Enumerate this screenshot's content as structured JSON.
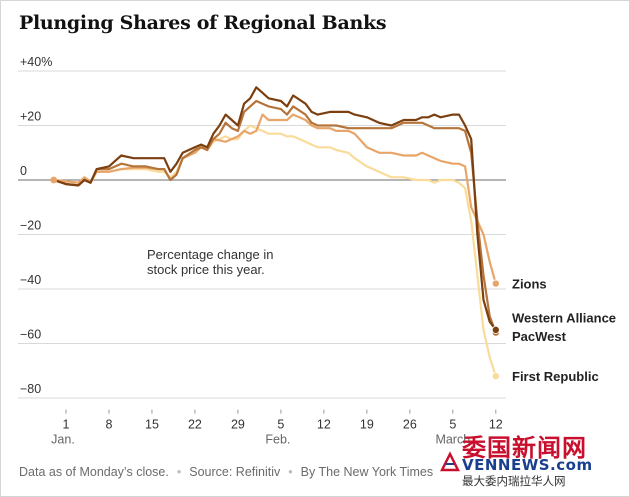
{
  "title": "Plunging Shares of Regional Banks",
  "footer": {
    "note": "Data as of Monday’s close.",
    "source": "Source: Refinitiv",
    "credit": "By The New York Times"
  },
  "watermark": {
    "chinese_title": "委国新闻网",
    "latin": "VENNEWS.com",
    "chinese_tagline": "最大委内瑞拉华人网"
  },
  "colors": {
    "zions": "#E8A569",
    "western_alliance": "#7B3F10",
    "pacwest": "#B5743A",
    "first_republic": "#F9DB9A",
    "grid": "#D9D9D9",
    "zero_line": "#8A8A8A",
    "text": "#333333"
  },
  "chart_data": {
    "type": "line",
    "title": "Plunging Shares of Regional Banks",
    "annotation": "Percentage change in stock price this year.",
    "xlabel": "",
    "ylabel": "",
    "ylim": [
      -85,
      40
    ],
    "yticks": [
      {
        "value": 40,
        "label": "+40%"
      },
      {
        "value": 20,
        "label": "+20"
      },
      {
        "value": 0,
        "label": "0"
      },
      {
        "value": -20,
        "label": "−20"
      },
      {
        "value": -40,
        "label": "−40"
      },
      {
        "value": -60,
        "label": "−60"
      },
      {
        "value": -80,
        "label": "−80"
      }
    ],
    "xticks": [
      {
        "day": 1,
        "label": "1",
        "month": "Jan."
      },
      {
        "day": 8,
        "label": "8",
        "month": ""
      },
      {
        "day": 15,
        "label": "15",
        "month": ""
      },
      {
        "day": 22,
        "label": "22",
        "month": ""
      },
      {
        "day": 29,
        "label": "29",
        "month": ""
      },
      {
        "day": 36,
        "label": "5",
        "month": "Feb."
      },
      {
        "day": 43,
        "label": "12",
        "month": ""
      },
      {
        "day": 50,
        "label": "19",
        "month": ""
      },
      {
        "day": 57,
        "label": "26",
        "month": ""
      },
      {
        "day": 64,
        "label": "5",
        "month": "March"
      },
      {
        "day": 71,
        "label": "12",
        "month": ""
      }
    ],
    "grid": "horizontal",
    "series": [
      {
        "name": "Zions",
        "key": "zions",
        "end_label": "Zions",
        "points": [
          [
            -1,
            0
          ],
          [
            1,
            -0.5
          ],
          [
            3,
            -1
          ],
          [
            4,
            1
          ],
          [
            5,
            -0.5
          ],
          [
            6,
            3
          ],
          [
            8,
            3
          ],
          [
            10,
            4
          ],
          [
            12,
            4.5
          ],
          [
            14,
            4.5
          ],
          [
            16,
            4
          ],
          [
            17,
            4
          ],
          [
            18,
            0
          ],
          [
            19,
            2
          ],
          [
            20,
            8
          ],
          [
            22,
            10
          ],
          [
            23,
            12
          ],
          [
            24,
            11
          ],
          [
            25,
            15
          ],
          [
            27,
            14
          ],
          [
            29,
            16
          ],
          [
            30,
            18
          ],
          [
            31,
            17
          ],
          [
            32,
            18
          ],
          [
            33,
            24
          ],
          [
            34,
            22
          ],
          [
            35,
            22
          ],
          [
            36,
            22
          ],
          [
            37,
            22
          ],
          [
            38,
            24
          ],
          [
            40,
            22
          ],
          [
            41,
            20
          ],
          [
            42,
            19
          ],
          [
            44,
            19
          ],
          [
            45,
            18
          ],
          [
            47,
            18
          ],
          [
            48,
            17
          ],
          [
            50,
            12
          ],
          [
            52,
            10
          ],
          [
            54,
            10
          ],
          [
            56,
            9
          ],
          [
            58,
            9
          ],
          [
            59,
            10
          ],
          [
            60,
            9
          ],
          [
            61,
            8
          ],
          [
            62,
            7
          ],
          [
            64,
            6
          ],
          [
            65,
            6
          ],
          [
            66,
            5
          ],
          [
            67,
            -10
          ],
          [
            68,
            -15
          ],
          [
            69,
            -20
          ],
          [
            70,
            -30
          ],
          [
            71,
            -38
          ]
        ],
        "end_value": -38
      },
      {
        "name": "Western Alliance",
        "key": "western_alliance",
        "end_label": "Western Alliance",
        "points": [
          [
            -1,
            0
          ],
          [
            1,
            -1.5
          ],
          [
            3,
            -2
          ],
          [
            4,
            0
          ],
          [
            5,
            -1
          ],
          [
            6,
            4
          ],
          [
            8,
            5
          ],
          [
            9,
            7
          ],
          [
            10,
            9
          ],
          [
            12,
            8
          ],
          [
            14,
            8
          ],
          [
            16,
            8
          ],
          [
            17,
            8
          ],
          [
            18,
            3
          ],
          [
            19,
            6
          ],
          [
            20,
            10
          ],
          [
            22,
            12
          ],
          [
            23,
            13
          ],
          [
            24,
            12
          ],
          [
            25,
            17
          ],
          [
            26,
            20
          ],
          [
            27,
            24
          ],
          [
            28,
            22
          ],
          [
            29,
            20
          ],
          [
            30,
            28
          ],
          [
            31,
            30
          ],
          [
            32,
            34
          ],
          [
            33,
            32
          ],
          [
            34,
            30
          ],
          [
            36,
            29
          ],
          [
            37,
            27
          ],
          [
            38,
            31
          ],
          [
            40,
            28
          ],
          [
            41,
            25
          ],
          [
            42,
            24
          ],
          [
            44,
            25
          ],
          [
            45,
            25
          ],
          [
            47,
            25
          ],
          [
            48,
            24
          ],
          [
            50,
            23
          ],
          [
            52,
            21
          ],
          [
            54,
            20
          ],
          [
            56,
            22
          ],
          [
            58,
            22
          ],
          [
            59,
            23
          ],
          [
            60,
            23
          ],
          [
            61,
            24
          ],
          [
            62,
            23
          ],
          [
            64,
            24
          ],
          [
            65,
            24
          ],
          [
            66,
            20
          ],
          [
            67,
            15
          ],
          [
            68,
            -20
          ],
          [
            69,
            -44
          ],
          [
            70,
            -52
          ],
          [
            71,
            -55
          ]
        ],
        "end_value": -55
      },
      {
        "name": "PacWest",
        "key": "pacwest",
        "end_label": "PacWest",
        "points": [
          [
            -1,
            0
          ],
          [
            1,
            -1.5
          ],
          [
            3,
            -2
          ],
          [
            4,
            0
          ],
          [
            5,
            -1
          ],
          [
            6,
            4
          ],
          [
            8,
            4
          ],
          [
            10,
            6
          ],
          [
            12,
            5
          ],
          [
            14,
            5
          ],
          [
            16,
            4
          ],
          [
            17,
            4
          ],
          [
            18,
            0
          ],
          [
            19,
            2
          ],
          [
            20,
            8
          ],
          [
            22,
            11
          ],
          [
            23,
            12
          ],
          [
            24,
            11
          ],
          [
            25,
            15
          ],
          [
            26,
            17
          ],
          [
            27,
            21
          ],
          [
            28,
            19
          ],
          [
            29,
            18
          ],
          [
            30,
            25
          ],
          [
            31,
            27
          ],
          [
            32,
            29
          ],
          [
            33,
            28
          ],
          [
            34,
            27
          ],
          [
            36,
            26
          ],
          [
            37,
            24
          ],
          [
            38,
            27
          ],
          [
            40,
            24
          ],
          [
            41,
            21
          ],
          [
            42,
            20
          ],
          [
            44,
            20
          ],
          [
            45,
            20
          ],
          [
            47,
            19
          ],
          [
            48,
            19
          ],
          [
            50,
            19
          ],
          [
            52,
            19
          ],
          [
            54,
            19
          ],
          [
            56,
            21
          ],
          [
            58,
            21
          ],
          [
            59,
            21
          ],
          [
            60,
            20
          ],
          [
            61,
            19
          ],
          [
            62,
            19
          ],
          [
            64,
            19
          ],
          [
            65,
            19
          ],
          [
            66,
            18
          ],
          [
            67,
            10
          ],
          [
            68,
            -15
          ],
          [
            69,
            -35
          ],
          [
            70,
            -50
          ],
          [
            71,
            -56
          ]
        ],
        "end_value": -56
      },
      {
        "name": "First Republic",
        "key": "first_republic",
        "end_label": "First Republic",
        "points": [
          [
            -1,
            0
          ],
          [
            1,
            -0.5
          ],
          [
            3,
            -1
          ],
          [
            4,
            0
          ],
          [
            5,
            -1
          ],
          [
            6,
            3
          ],
          [
            8,
            3
          ],
          [
            10,
            4
          ],
          [
            12,
            4
          ],
          [
            14,
            4
          ],
          [
            16,
            3
          ],
          [
            17,
            3
          ],
          [
            18,
            1
          ],
          [
            19,
            3
          ],
          [
            20,
            8
          ],
          [
            22,
            11
          ],
          [
            23,
            13
          ],
          [
            24,
            11
          ],
          [
            25,
            14
          ],
          [
            26,
            15
          ],
          [
            27,
            16
          ],
          [
            28,
            15
          ],
          [
            29,
            15
          ],
          [
            30,
            18
          ],
          [
            31,
            20
          ],
          [
            32,
            19
          ],
          [
            33,
            18
          ],
          [
            34,
            17
          ],
          [
            36,
            17
          ],
          [
            37,
            16
          ],
          [
            38,
            16
          ],
          [
            40,
            14
          ],
          [
            41,
            13
          ],
          [
            42,
            12
          ],
          [
            44,
            12
          ],
          [
            45,
            11
          ],
          [
            47,
            10
          ],
          [
            48,
            8
          ],
          [
            50,
            5
          ],
          [
            52,
            3
          ],
          [
            54,
            1
          ],
          [
            56,
            1
          ],
          [
            58,
            0
          ],
          [
            59,
            0
          ],
          [
            60,
            0
          ],
          [
            61,
            -1
          ],
          [
            62,
            0
          ],
          [
            64,
            0
          ],
          [
            65,
            -1
          ],
          [
            66,
            -3
          ],
          [
            67,
            -15
          ],
          [
            68,
            -35
          ],
          [
            69,
            -55
          ],
          [
            70,
            -65
          ],
          [
            71,
            -72
          ]
        ],
        "end_value": -72
      }
    ]
  }
}
